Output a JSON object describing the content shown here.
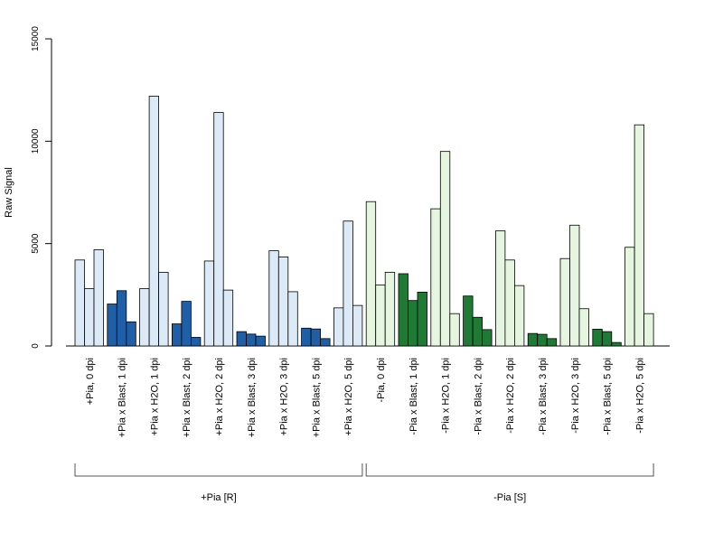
{
  "chart_data": {
    "type": "bar",
    "ylabel": "Raw Signal",
    "ylim": [
      0,
      15000
    ],
    "yticks": [
      0,
      5000,
      10000,
      15000
    ],
    "grid": false,
    "categories": [
      "+Pia, 0 dpi",
      "+Pia x Blast, 1 dpi",
      "+Pia x H2O, 1 dpi",
      "+Pia x Blast, 2 dpi",
      "+Pia x H2O, 2 dpi",
      "+Pia x Blast, 3 dpi",
      "+Pia x H2O, 3 dpi",
      "+Pia x Blast, 5 dpi",
      "+Pia x H2O, 5 dpi",
      "-Pia, 0 dpi",
      "-Pia x Blast, 1 dpi",
      "-Pia x H2O, 1 dpi",
      "-Pia x Blast, 2 dpi",
      "-Pia x H2O, 2 dpi",
      "-Pia x Blast, 3 dpi",
      "-Pia x H2O, 3 dpi",
      "-Pia x Blast, 5 dpi",
      "-Pia x H2O, 5 dpi"
    ],
    "replicates_per_category": 3,
    "values": [
      [
        4200,
        2800,
        4700
      ],
      [
        2050,
        2700,
        1180
      ],
      [
        2800,
        12200,
        3600
      ],
      [
        1080,
        2180,
        420
      ],
      [
        4150,
        11400,
        2730
      ],
      [
        700,
        580,
        480
      ],
      [
        4650,
        4350,
        2650
      ],
      [
        870,
        830,
        360
      ],
      [
        1860,
        6100,
        1980
      ],
      [
        7050,
        2980,
        3600
      ],
      [
        3530,
        2220,
        2630
      ],
      [
        6700,
        9500,
        1580
      ],
      [
        2440,
        1400,
        800
      ],
      [
        5620,
        4200,
        2950
      ],
      [
        610,
        570,
        360
      ],
      [
        4270,
        5900,
        1820
      ],
      [
        820,
        700,
        170
      ],
      [
        4820,
        10800,
        1580
      ]
    ],
    "groups": [
      {
        "label": "+Pia [R]",
        "from": 0,
        "to": 8
      },
      {
        "label": "-Pia [S]",
        "from": 9,
        "to": 17
      }
    ],
    "colors": {
      "light_blue": "#dce9f7",
      "dark_blue": "#1f5fa8",
      "light_green": "#e5f5e0",
      "dark_green": "#1e7a34",
      "outline": "#000000"
    }
  }
}
